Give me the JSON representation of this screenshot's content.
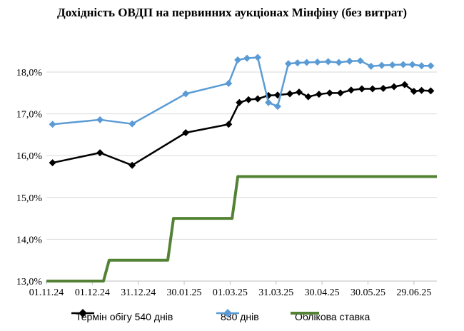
{
  "chart_data": {
    "type": "line",
    "title": "Дохідність ОВДП на первинних аукціонах Мінфіну (без витрат)",
    "xlabel": "",
    "ylabel": "",
    "ylim": [
      13.0,
      18.7
    ],
    "yticks": [
      "13,0%",
      "14,0%",
      "15,0%",
      "16,0%",
      "17,0%",
      "18,0%"
    ],
    "ytick_values": [
      13,
      14,
      15,
      16,
      17,
      18
    ],
    "xlim": [
      "2024-11-01",
      "2025-07-14"
    ],
    "xticks": [
      {
        "date": "2024-11-01",
        "label": "01.11.24"
      },
      {
        "date": "2024-12-01",
        "label": "01.12.24"
      },
      {
        "date": "2024-12-31",
        "label": "31.12.24"
      },
      {
        "date": "2025-01-30",
        "label": "30.01.25"
      },
      {
        "date": "2025-03-01",
        "label": "01.03.25"
      },
      {
        "date": "2025-03-31",
        "label": "31.03.25"
      },
      {
        "date": "2025-04-30",
        "label": "30.04.25"
      },
      {
        "date": "2025-05-30",
        "label": "30.05.25"
      },
      {
        "date": "2025-06-29",
        "label": "29.06.25"
      }
    ],
    "grid": "horizontal",
    "legend_position": "bottom",
    "series": [
      {
        "name": "Термін обігу 540 днів",
        "color": "#000000",
        "marker": "diamond",
        "x": [
          "2024-11-05",
          "2024-12-06",
          "2024-12-27",
          "2025-01-31",
          "2025-02-28",
          "2025-03-07",
          "2025-03-13",
          "2025-03-19",
          "2025-03-26",
          "2025-04-01",
          "2025-04-09",
          "2025-04-15",
          "2025-04-21",
          "2025-04-28",
          "2025-05-05",
          "2025-05-12",
          "2025-05-19",
          "2025-05-26",
          "2025-06-02",
          "2025-06-09",
          "2025-06-16",
          "2025-06-23",
          "2025-06-29",
          "2025-07-04",
          "2025-07-10"
        ],
        "y": [
          15.83,
          16.07,
          15.77,
          16.55,
          16.75,
          17.27,
          17.34,
          17.36,
          17.44,
          17.45,
          17.48,
          17.52,
          17.41,
          17.47,
          17.5,
          17.5,
          17.57,
          17.6,
          17.6,
          17.61,
          17.65,
          17.7,
          17.54,
          17.56,
          17.55
        ]
      },
      {
        "name": "830 днів",
        "color": "#5b9bd5",
        "marker": "diamond",
        "x": [
          "2024-11-05",
          "2024-12-06",
          "2024-12-27",
          "2025-01-31",
          "2025-02-28",
          "2025-03-06",
          "2025-03-12",
          "2025-03-19",
          "2025-03-26",
          "2025-04-01",
          "2025-04-08",
          "2025-04-14",
          "2025-04-20",
          "2025-04-27",
          "2025-05-04",
          "2025-05-11",
          "2025-05-18",
          "2025-05-25",
          "2025-06-01",
          "2025-06-08",
          "2025-06-15",
          "2025-06-22",
          "2025-06-28",
          "2025-07-04",
          "2025-07-10"
        ],
        "y": [
          16.75,
          16.86,
          16.76,
          17.48,
          17.73,
          18.29,
          18.33,
          18.35,
          17.27,
          17.18,
          18.2,
          18.22,
          18.23,
          18.24,
          18.25,
          18.23,
          18.26,
          18.27,
          18.14,
          18.16,
          18.17,
          18.18,
          18.18,
          18.15,
          18.15
        ]
      },
      {
        "name": "Облікова ставка",
        "color": "#548235",
        "marker": "none",
        "step": true,
        "x": [
          "2024-11-01",
          "2024-12-12",
          "2025-01-23",
          "2025-03-06",
          "2025-07-14"
        ],
        "y": [
          13.0,
          13.5,
          14.5,
          15.5,
          15.5
        ]
      }
    ]
  }
}
